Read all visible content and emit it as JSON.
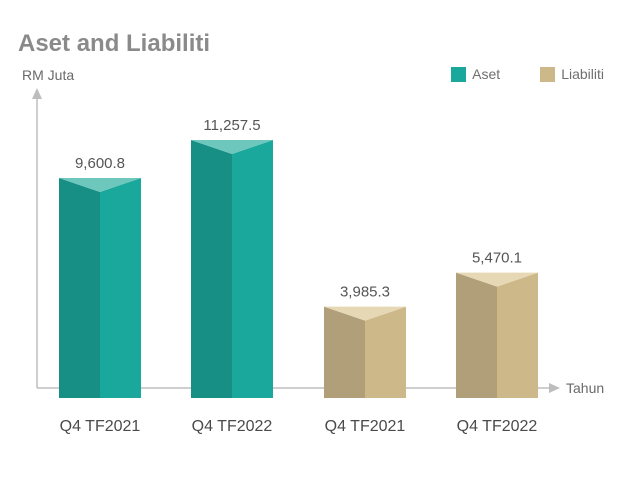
{
  "chart_data": {
    "type": "bar",
    "title": "Aset and Liabiliti",
    "ylabel": "RM Juta",
    "xlabel": "Tahun",
    "categories": [
      "Q4 TF2021",
      "Q4 TF2022",
      "Q4 TF2021",
      "Q4 TF2022"
    ],
    "values": [
      9600.8,
      11257.5,
      3985.3,
      5470.1
    ],
    "value_labels": [
      "9,600.8",
      "11,257.5",
      "3,985.3",
      "5,470.1"
    ],
    "bar_series": [
      "Aset",
      "Aset",
      "Liabiliti",
      "Liabiliti"
    ],
    "series": [
      {
        "name": "Aset",
        "color": "#19a89b"
      },
      {
        "name": "Liabiliti",
        "color": "#cdb88a"
      }
    ],
    "ylim": [
      0,
      12500
    ],
    "legend_position": "top-right",
    "grid": false
  }
}
